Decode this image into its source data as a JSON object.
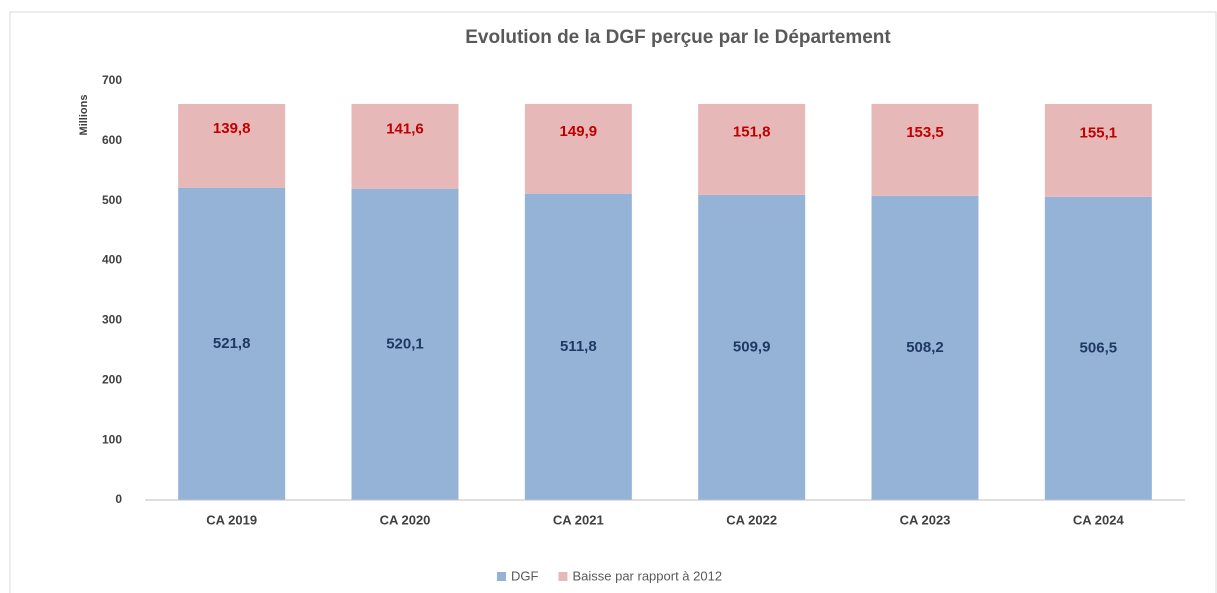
{
  "chart_data": {
    "type": "stacked_bar",
    "title": "Evolution de la DGF perçue par le Département",
    "y_label": "Millions",
    "categories": [
      "CA 2019",
      "CA 2020",
      "CA 2021",
      "CA 2022",
      "CA 2023",
      "CA 2024"
    ],
    "series": [
      {
        "name": "DGF",
        "color": "#95b3d7",
        "label_color": "#1f3864",
        "values": [
          521.8,
          520.1,
          511.8,
          509.9,
          508.2,
          506.5
        ],
        "value_labels": [
          "521,8",
          "520,1",
          "511,8",
          "509,9",
          "508,2",
          "506,5"
        ]
      },
      {
        "name": "Baisse par rapport à 2012",
        "color": "#e6b9b8",
        "label_color": "#c00000",
        "values": [
          139.8,
          141.6,
          149.9,
          151.8,
          153.5,
          155.1
        ],
        "value_labels": [
          "139,8",
          "141,6",
          "149,9",
          "151,8",
          "153,5",
          "155,1"
        ]
      }
    ],
    "ylim": [
      0,
      700
    ],
    "yticks": [
      0,
      100,
      200,
      300,
      400,
      500,
      600,
      700
    ],
    "grid": false,
    "legend": "bottom"
  }
}
